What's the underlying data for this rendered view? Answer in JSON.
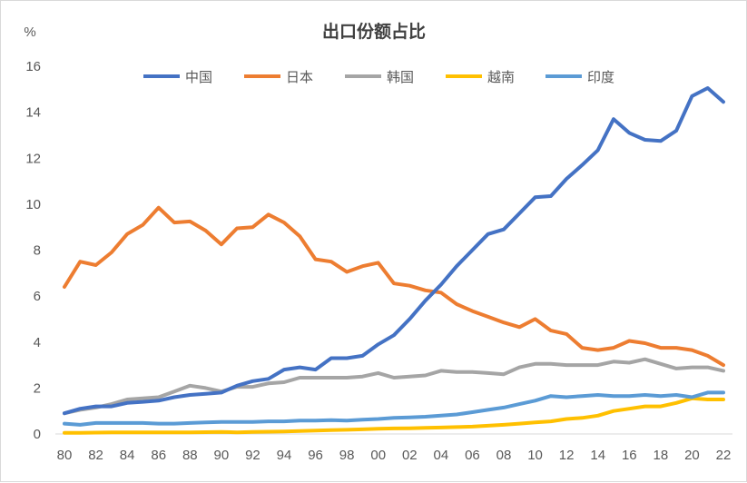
{
  "chart_data": {
    "type": "line",
    "title": "出口份额占比",
    "ylabel": "%",
    "xlabel": "",
    "ylim": [
      0,
      16
    ],
    "yticks": [
      "0",
      "2",
      "4",
      "6",
      "8",
      "10",
      "12",
      "14",
      "16"
    ],
    "x": [
      "80",
      "81",
      "82",
      "83",
      "84",
      "85",
      "86",
      "87",
      "88",
      "89",
      "90",
      "91",
      "92",
      "93",
      "94",
      "95",
      "96",
      "97",
      "98",
      "99",
      "00",
      "01",
      "02",
      "03",
      "04",
      "05",
      "06",
      "07",
      "08",
      "09",
      "10",
      "11",
      "12",
      "13",
      "14",
      "15",
      "16",
      "17",
      "18",
      "19",
      "20",
      "21",
      "22"
    ],
    "xticks": [
      "80",
      "82",
      "84",
      "86",
      "88",
      "90",
      "92",
      "94",
      "96",
      "98",
      "00",
      "02",
      "04",
      "06",
      "08",
      "10",
      "12",
      "14",
      "16",
      "18",
      "20",
      "22"
    ],
    "grid": false,
    "legend_position": "top",
    "series": [
      {
        "name": "中国",
        "color": "#4472C4",
        "values": [
          0.9,
          1.1,
          1.2,
          1.2,
          1.35,
          1.4,
          1.45,
          1.6,
          1.7,
          1.75,
          1.8,
          2.1,
          2.3,
          2.4,
          2.8,
          2.9,
          2.8,
          3.3,
          3.3,
          3.4,
          3.9,
          4.3,
          5.0,
          5.8,
          6.5,
          7.3,
          8.0,
          8.7,
          8.9,
          9.6,
          10.3,
          10.35,
          11.1,
          11.7,
          12.35,
          13.7,
          13.1,
          12.8,
          12.75,
          13.2,
          14.7,
          15.05,
          14.45
        ]
      },
      {
        "name": "日本",
        "color": "#ED7D31",
        "values": [
          6.4,
          7.5,
          7.35,
          7.9,
          8.7,
          9.1,
          9.85,
          9.2,
          9.25,
          8.85,
          8.25,
          8.95,
          9.0,
          9.55,
          9.2,
          8.6,
          7.6,
          7.5,
          7.05,
          7.3,
          7.45,
          6.55,
          6.45,
          6.25,
          6.15,
          5.65,
          5.35,
          5.1,
          4.85,
          4.65,
          5.0,
          4.5,
          4.35,
          3.75,
          3.65,
          3.75,
          4.05,
          3.95,
          3.75,
          3.75,
          3.65,
          3.4,
          3.0
        ]
      },
      {
        "name": "韩国",
        "color": "#A5A5A5",
        "values": [
          0.9,
          1.05,
          1.15,
          1.3,
          1.5,
          1.55,
          1.6,
          1.85,
          2.1,
          2.0,
          1.85,
          2.05,
          2.05,
          2.2,
          2.25,
          2.45,
          2.45,
          2.45,
          2.45,
          2.5,
          2.65,
          2.45,
          2.5,
          2.55,
          2.75,
          2.7,
          2.7,
          2.65,
          2.6,
          2.9,
          3.05,
          3.05,
          3.0,
          3.0,
          3.0,
          3.15,
          3.1,
          3.25,
          3.05,
          2.85,
          2.9,
          2.9,
          2.75
        ]
      },
      {
        "name": "越南",
        "color": "#FFC000",
        "values": [
          0.05,
          0.05,
          0.06,
          0.07,
          0.07,
          0.07,
          0.07,
          0.07,
          0.07,
          0.08,
          0.09,
          0.07,
          0.09,
          0.1,
          0.11,
          0.13,
          0.15,
          0.17,
          0.18,
          0.2,
          0.23,
          0.24,
          0.25,
          0.27,
          0.28,
          0.3,
          0.32,
          0.36,
          0.4,
          0.45,
          0.5,
          0.55,
          0.65,
          0.7,
          0.8,
          1.0,
          1.1,
          1.2,
          1.2,
          1.35,
          1.55,
          1.5,
          1.5
        ]
      },
      {
        "name": "印度",
        "color": "#5B9BD5",
        "values": [
          0.45,
          0.4,
          0.48,
          0.48,
          0.48,
          0.48,
          0.45,
          0.45,
          0.48,
          0.5,
          0.52,
          0.52,
          0.52,
          0.55,
          0.55,
          0.58,
          0.58,
          0.6,
          0.58,
          0.62,
          0.65,
          0.7,
          0.72,
          0.75,
          0.8,
          0.85,
          0.95,
          1.05,
          1.15,
          1.3,
          1.45,
          1.65,
          1.6,
          1.65,
          1.7,
          1.65,
          1.65,
          1.7,
          1.65,
          1.7,
          1.6,
          1.8,
          1.8
        ]
      }
    ]
  }
}
